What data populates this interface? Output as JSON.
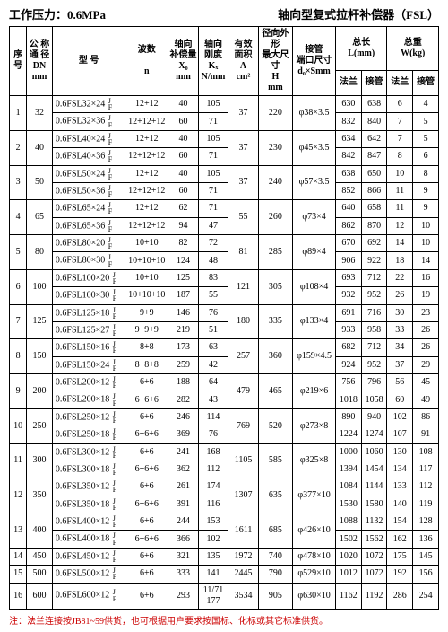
{
  "header": {
    "left": "工作压力：0.6MPa",
    "right": "轴向型复式拉杆补偿器（FSL）"
  },
  "cols": {
    "seq": "序号",
    "dn": "公 称\n通 径\nDN\nmm",
    "model": "型 号",
    "n": "波数\n\nn",
    "x0": "轴向\n补偿量\nX₀\nmm",
    "kx": "轴向\n刚度\nKₓ\nN/mm",
    "a": "有效\n面积\nA\ncm²",
    "h": "径向外形\n最大尺寸\nH\nmm",
    "d": "接管\n端口尺寸\nd₀×Smm",
    "len": "总长\nL(mm)",
    "wt": "总重\nW(kg)",
    "flan": "法兰",
    "pipe": "接管"
  },
  "jf": "J\nF",
  "rows": [
    {
      "seq": "1",
      "dn": "32",
      "a": "37",
      "h": "220",
      "d": "φ38×3.5",
      "m": [
        {
          "model": "0.6FSL32×24",
          "n": "12+12",
          "x0": "40",
          "kx": "105",
          "l1": "630",
          "l2": "638",
          "w1": "6",
          "w2": "4"
        },
        {
          "model": "0.6FSL32×36",
          "n": "12+12+12",
          "x0": "60",
          "kx": "71",
          "l1": "832",
          "l2": "840",
          "w1": "7",
          "w2": "5"
        }
      ]
    },
    {
      "seq": "2",
      "dn": "40",
      "a": "37",
      "h": "230",
      "d": "φ45×3.5",
      "m": [
        {
          "model": "0.6FSL40×24",
          "n": "12+12",
          "x0": "40",
          "kx": "105",
          "l1": "634",
          "l2": "642",
          "w1": "7",
          "w2": "5"
        },
        {
          "model": "0.6FSL40×36",
          "n": "12+12+12",
          "x0": "60",
          "kx": "71",
          "l1": "842",
          "l2": "847",
          "w1": "8",
          "w2": "6"
        }
      ]
    },
    {
      "seq": "3",
      "dn": "50",
      "a": "37",
      "h": "240",
      "d": "φ57×3.5",
      "m": [
        {
          "model": "0.6FSL50×24",
          "n": "12+12",
          "x0": "40",
          "kx": "105",
          "l1": "638",
          "l2": "650",
          "w1": "10",
          "w2": "8"
        },
        {
          "model": "0.6FSL50×36",
          "n": "12+12+12",
          "x0": "60",
          "kx": "71",
          "l1": "852",
          "l2": "866",
          "w1": "11",
          "w2": "9"
        }
      ]
    },
    {
      "seq": "4",
      "dn": "65",
      "a": "55",
      "h": "260",
      "d": "φ73×4",
      "m": [
        {
          "model": "0.6FSL65×24",
          "n": "12+12",
          "x0": "62",
          "kx": "71",
          "l1": "640",
          "l2": "658",
          "w1": "11",
          "w2": "9"
        },
        {
          "model": "0.6FSL65×36",
          "n": "12+12+12",
          "x0": "94",
          "kx": "47",
          "l1": "862",
          "l2": "870",
          "w1": "12",
          "w2": "10"
        }
      ]
    },
    {
      "seq": "5",
      "dn": "80",
      "a": "81",
      "h": "285",
      "d": "φ89×4",
      "m": [
        {
          "model": "0.6FSL80×20",
          "n": "10+10",
          "x0": "82",
          "kx": "72",
          "l1": "670",
          "l2": "692",
          "w1": "14",
          "w2": "10"
        },
        {
          "model": "0.6FSL80×30",
          "n": "10+10+10",
          "x0": "124",
          "kx": "48",
          "l1": "906",
          "l2": "922",
          "w1": "18",
          "w2": "14"
        }
      ]
    },
    {
      "seq": "6",
      "dn": "100",
      "a": "121",
      "h": "305",
      "d": "φ108×4",
      "m": [
        {
          "model": "0.6FSL100×20",
          "n": "10+10",
          "x0": "125",
          "kx": "83",
          "l1": "693",
          "l2": "712",
          "w1": "22",
          "w2": "16"
        },
        {
          "model": "0.6FSL100×30",
          "n": "10+10+10",
          "x0": "187",
          "kx": "55",
          "l1": "932",
          "l2": "952",
          "w1": "26",
          "w2": "19"
        }
      ]
    },
    {
      "seq": "7",
      "dn": "125",
      "a": "180",
      "h": "335",
      "d": "φ133×4",
      "m": [
        {
          "model": "0.6FSL125×18",
          "n": "9+9",
          "x0": "146",
          "kx": "76",
          "l1": "691",
          "l2": "716",
          "w1": "30",
          "w2": "23"
        },
        {
          "model": "0.6FSL125×27",
          "n": "9+9+9",
          "x0": "219",
          "kx": "51",
          "l1": "933",
          "l2": "958",
          "w1": "33",
          "w2": "26"
        }
      ]
    },
    {
      "seq": "8",
      "dn": "150",
      "a": "257",
      "h": "360",
      "d": "φ159×4.5",
      "m": [
        {
          "model": "0.6FSL150×16",
          "n": "8+8",
          "x0": "173",
          "kx": "63",
          "l1": "682",
          "l2": "712",
          "w1": "34",
          "w2": "26"
        },
        {
          "model": "0.6FSL150×24",
          "n": "8+8+8",
          "x0": "259",
          "kx": "42",
          "l1": "924",
          "l2": "952",
          "w1": "37",
          "w2": "29"
        }
      ]
    },
    {
      "seq": "9",
      "dn": "200",
      "a": "479",
      "h": "465",
      "d": "φ219×6",
      "m": [
        {
          "model": "0.6FSL200×12",
          "n": "6+6",
          "x0": "188",
          "kx": "64",
          "l1": "756",
          "l2": "796",
          "w1": "56",
          "w2": "45"
        },
        {
          "model": "0.6FSL200×18",
          "n": "6+6+6",
          "x0": "282",
          "kx": "43",
          "l1": "1018",
          "l2": "1058",
          "w1": "60",
          "w2": "49"
        }
      ]
    },
    {
      "seq": "10",
      "dn": "250",
      "a": "769",
      "h": "520",
      "d": "φ273×8",
      "m": [
        {
          "model": "0.6FSL250×12",
          "n": "6+6",
          "x0": "246",
          "kx": "114",
          "l1": "890",
          "l2": "940",
          "w1": "102",
          "w2": "86"
        },
        {
          "model": "0.6FSL250×18",
          "n": "6+6+6",
          "x0": "369",
          "kx": "76",
          "l1": "1224",
          "l2": "1274",
          "w1": "107",
          "w2": "91"
        }
      ]
    },
    {
      "seq": "11",
      "dn": "300",
      "a": "1105",
      "h": "585",
      "d": "φ325×8",
      "m": [
        {
          "model": "0.6FSL300×12",
          "n": "6+6",
          "x0": "241",
          "kx": "168",
          "l1": "1000",
          "l2": "1060",
          "w1": "130",
          "w2": "108"
        },
        {
          "model": "0.6FSL300×18",
          "n": "6+6+6",
          "x0": "362",
          "kx": "112",
          "l1": "1394",
          "l2": "1454",
          "w1": "134",
          "w2": "117"
        }
      ]
    },
    {
      "seq": "12",
      "dn": "350",
      "a": "1307",
      "h": "635",
      "d": "φ377×10",
      "m": [
        {
          "model": "0.6FSL350×12",
          "n": "6+6",
          "x0": "261",
          "kx": "174",
          "l1": "1084",
          "l2": "1144",
          "w1": "133",
          "w2": "112"
        },
        {
          "model": "0.6FSL350×18",
          "n": "6+6+6",
          "x0": "391",
          "kx": "116",
          "l1": "1530",
          "l2": "1580",
          "w1": "140",
          "w2": "119"
        }
      ]
    },
    {
      "seq": "13",
      "dn": "400",
      "a": "1611",
      "h": "685",
      "d": "φ426×10",
      "m": [
        {
          "model": "0.6FSL400×12",
          "n": "6+6",
          "x0": "244",
          "kx": "153",
          "l1": "1088",
          "l2": "1132",
          "w1": "154",
          "w2": "128"
        },
        {
          "model": "0.6FSL400×18",
          "n": "6+6+6",
          "x0": "366",
          "kx": "102",
          "l1": "1502",
          "l2": "1562",
          "w1": "162",
          "w2": "136"
        }
      ]
    },
    {
      "seq": "14",
      "dn": "450",
      "a": "1972",
      "h": "740",
      "d": "φ478×10",
      "m": [
        {
          "model": "0.6FSL450×12",
          "n": "6+6",
          "x0": "321",
          "kx": "135",
          "l1": "1020",
          "l2": "1072",
          "w1": "175",
          "w2": "145"
        }
      ]
    },
    {
      "seq": "15",
      "dn": "500",
      "a": "2445",
      "h": "790",
      "d": "φ529×10",
      "m": [
        {
          "model": "0.6FSL500×12",
          "n": "6+6",
          "x0": "333",
          "kx": "141",
          "l1": "1012",
          "l2": "1072",
          "w1": "192",
          "w2": "156"
        }
      ]
    },
    {
      "seq": "16",
      "dn": "600",
      "a": "3534",
      "h": "905",
      "d": "φ630×10",
      "m": [
        {
          "model": "0.6FSL600×12",
          "n": "6+6",
          "x0": "293",
          "kx": "11/71\n177",
          "l1": "1162",
          "l2": "1192",
          "w1": "286",
          "w2": "254"
        }
      ]
    }
  ],
  "note": "注：法兰连接按JB81~59供货，也可根据用户要求按国标、化标或其它标准供货。"
}
